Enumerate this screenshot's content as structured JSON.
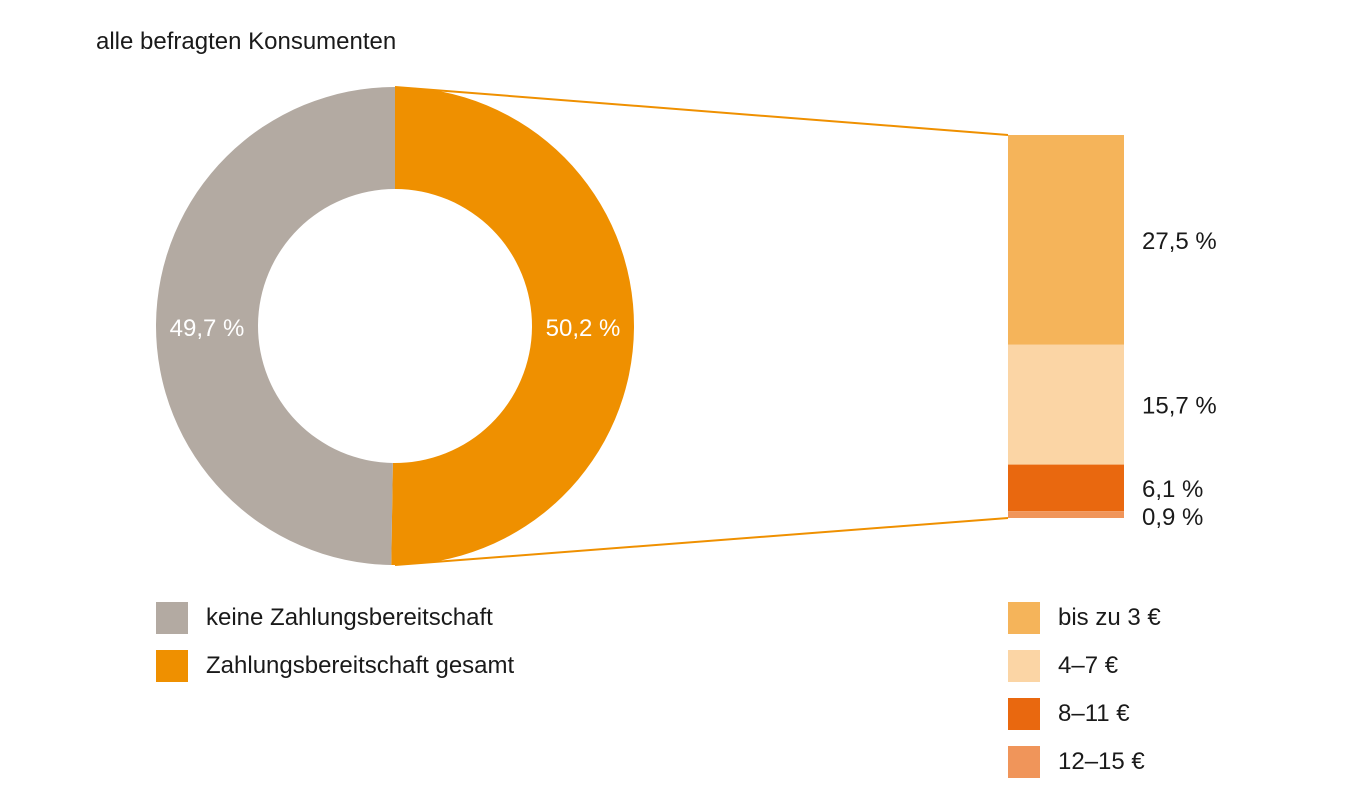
{
  "chart_data": {
    "type": "pie",
    "subtitle": "alle befragten Konsumenten",
    "donut": {
      "slices": [
        {
          "name": "keine Zahlungsbereitschaft",
          "value": 49.7,
          "label": "49,7 %",
          "color": "#b3aaa2"
        },
        {
          "name": "Zahlungsbereitschaft gesamt",
          "value": 50.2,
          "label": "50,2 %",
          "color": "#ef9000"
        }
      ]
    },
    "breakdown": {
      "type": "stacked-bar",
      "of": "Zahlungsbereitschaft gesamt",
      "segments": [
        {
          "name": "bis zu 3 €",
          "value": 27.5,
          "label": "27,5 %",
          "color": "#f5b45a"
        },
        {
          "name": "4–7 €",
          "value": 15.7,
          "label": "15,7 %",
          "color": "#fbd5a5"
        },
        {
          "name": "8–11 €",
          "value": 6.1,
          "label": "6,1 %",
          "color": "#e9680f"
        },
        {
          "name": "12–15 €",
          "value": 0.9,
          "label": "0,9 %",
          "color": "#f0955a"
        }
      ]
    },
    "connector_color": "#ef9000"
  }
}
